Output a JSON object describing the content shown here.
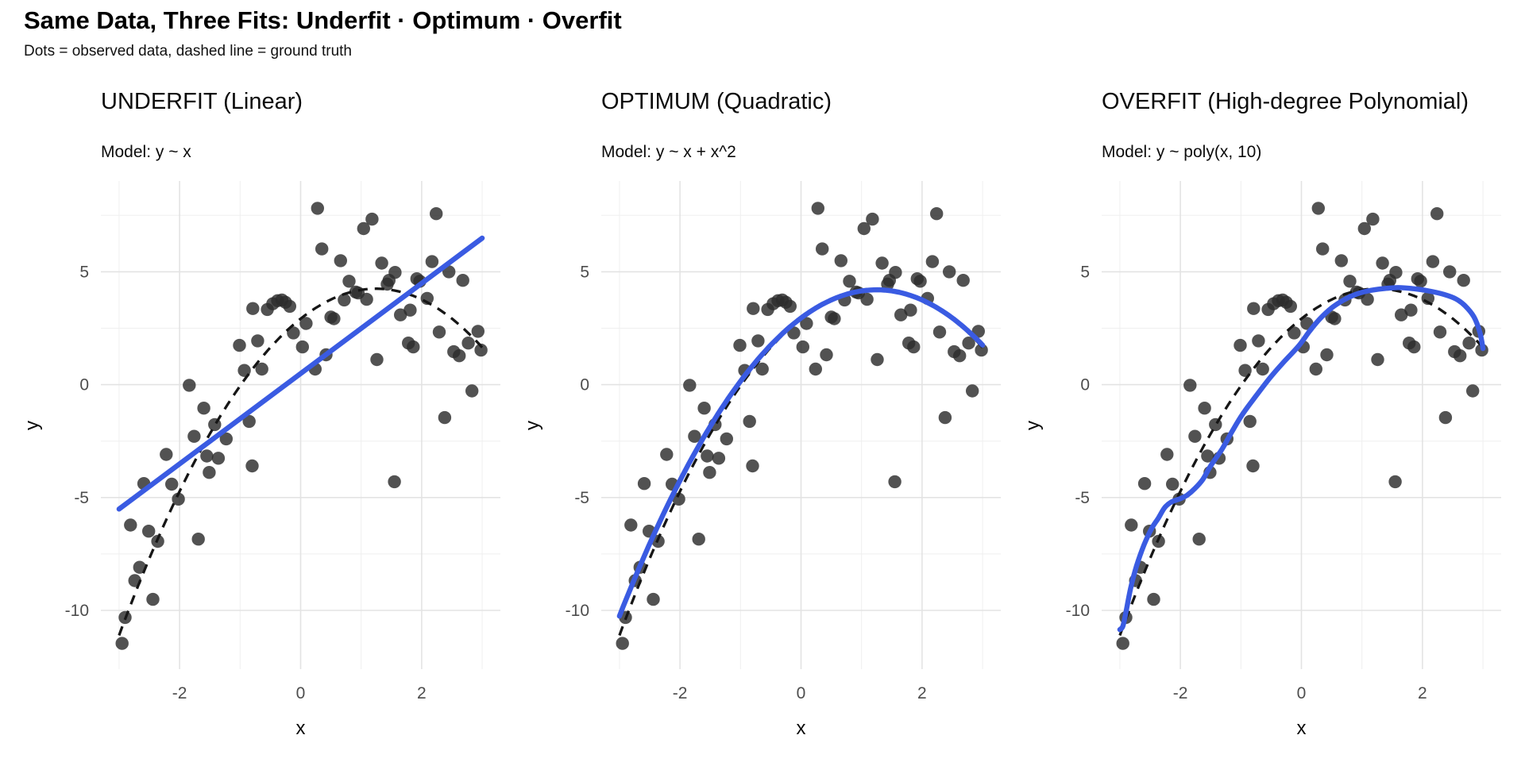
{
  "figure": {
    "title": "Same Data, Three Fits: Underfit · Optimum · Overfit",
    "subtitle": "Dots = observed data, dashed line = ground truth"
  },
  "chart_data": {
    "type": "scatter",
    "shared_points_across_panels": true,
    "xlabel": "x",
    "ylabel": "y",
    "xlim": [
      -3.3,
      3.3
    ],
    "ylim": [
      -12.6,
      9.02
    ],
    "x_ticks": [
      -2,
      0,
      2
    ],
    "y_ticks": [
      5,
      0,
      -5,
      -10
    ],
    "x_minor": [
      -3,
      -1,
      1,
      3
    ],
    "y_minor": [
      7.5,
      2.5,
      -2.5,
      -7.5
    ],
    "grid": "on",
    "colors": {
      "fit_line": "#3a5be2",
      "ground_truth": "#161616",
      "point": "#2c2c2c",
      "grid_major": "#e3e3e3",
      "grid_minor": "#efefef",
      "tick_text": "#4d4d4d",
      "axis_title_text": "#0c0c0c"
    },
    "point_style": {
      "radius": 8.2,
      "opacity": 0.82
    },
    "ground_truth": {
      "style": "dashed",
      "x_range": [
        -3,
        3
      ],
      "coef": {
        "a": 2.92,
        "b": 2.125,
        "c": -0.85
      }
    },
    "points": [
      [
        -0.79,
        3.37
      ],
      [
        -0.55,
        3.33
      ],
      [
        -0.46,
        3.58
      ],
      [
        -0.38,
        3.72
      ],
      [
        -0.31,
        3.75
      ],
      [
        -0.25,
        3.65
      ],
      [
        -0.18,
        3.47
      ],
      [
        -1.01,
        1.74
      ],
      [
        -0.71,
        1.94
      ],
      [
        -0.93,
        0.63
      ],
      [
        -0.64,
        0.69
      ],
      [
        -1.84,
        -0.03
      ],
      [
        -1.6,
        -1.04
      ],
      [
        0.28,
        7.81
      ],
      [
        1.18,
        7.33
      ],
      [
        1.04,
        6.91
      ],
      [
        2.24,
        7.57
      ],
      [
        0.35,
        6.01
      ],
      [
        0.66,
        5.49
      ],
      [
        1.34,
        5.38
      ],
      [
        2.17,
        5.45
      ],
      [
        1.56,
        4.97
      ],
      [
        2.45,
        5.0
      ],
      [
        1.46,
        4.62
      ],
      [
        1.43,
        4.45
      ],
      [
        0.8,
        4.58
      ],
      [
        2.68,
        4.62
      ],
      [
        0.91,
        4.1
      ],
      [
        0.95,
        4.06
      ],
      [
        1.09,
        3.78
      ],
      [
        0.72,
        3.75
      ],
      [
        1.92,
        4.69
      ],
      [
        1.97,
        4.58
      ],
      [
        2.09,
        3.82
      ],
      [
        0.5,
        2.99
      ],
      [
        0.55,
        2.92
      ],
      [
        0.09,
        2.71
      ],
      [
        -0.12,
        2.29
      ],
      [
        0.03,
        1.67
      ],
      [
        1.81,
        3.3
      ],
      [
        1.65,
        3.09
      ],
      [
        2.29,
        2.33
      ],
      [
        2.93,
        2.36
      ],
      [
        2.77,
        1.84
      ],
      [
        2.53,
        1.46
      ],
      [
        2.62,
        1.28
      ],
      [
        2.98,
        1.53
      ],
      [
        1.78,
        1.84
      ],
      [
        1.86,
        1.67
      ],
      [
        1.26,
        1.11
      ],
      [
        0.42,
        1.32
      ],
      [
        0.24,
        0.69
      ],
      [
        2.83,
        -0.28
      ],
      [
        2.38,
        -1.46
      ],
      [
        -1.76,
        -2.29
      ],
      [
        -1.42,
        -1.77
      ],
      [
        -1.23,
        -2.4
      ],
      [
        -0.85,
        -1.63
      ],
      [
        -2.22,
        -3.09
      ],
      [
        -1.55,
        -3.16
      ],
      [
        -1.36,
        -3.26
      ],
      [
        -1.51,
        -3.89
      ],
      [
        -0.8,
        -3.6
      ],
      [
        -2.13,
        -4.41
      ],
      [
        -2.59,
        -4.38
      ],
      [
        -2.02,
        -5.07
      ],
      [
        -2.81,
        -6.22
      ],
      [
        -2.51,
        -6.49
      ],
      [
        -2.36,
        -6.94
      ],
      [
        -1.69,
        -6.84
      ],
      [
        -2.66,
        -8.09
      ],
      [
        -2.74,
        -8.68
      ],
      [
        -2.44,
        -9.51
      ],
      [
        -2.9,
        -10.31
      ],
      [
        -2.95,
        -11.46
      ],
      [
        1.55,
        -4.3
      ]
    ],
    "panels": [
      {
        "title": "UNDERFIT (Linear)",
        "subtitle": "Model: y ~ x",
        "fit": {
          "type": "linear",
          "x_range": [
            -3,
            3
          ],
          "coef": {
            "a": 0.49,
            "b": 2.0
          }
        }
      },
      {
        "title": "OPTIMUM (Quadratic)",
        "subtitle": "Model: y ~ x + x^2",
        "fit": {
          "type": "quadratic",
          "x_range": [
            -3,
            3
          ],
          "coef": {
            "a": 2.95,
            "b": 2.0,
            "c": -0.8
          }
        }
      },
      {
        "title": "OVERFIT (High-degree Polynomial)",
        "subtitle": "Model: y ~ poly(x, 10)",
        "fit": {
          "type": "poly10",
          "waypoints": [
            [
              -3.0,
              -10.85
            ],
            [
              -2.95,
              -10.7
            ],
            [
              -2.9,
              -10.1
            ],
            [
              -2.82,
              -9.0
            ],
            [
              -2.72,
              -8.0
            ],
            [
              -2.6,
              -7.1
            ],
            [
              -2.48,
              -6.4
            ],
            [
              -2.36,
              -5.9
            ],
            [
              -2.26,
              -5.45
            ],
            [
              -2.15,
              -5.2
            ],
            [
              -2.0,
              -5.05
            ],
            [
              -1.89,
              -4.9
            ],
            [
              -1.76,
              -4.6
            ],
            [
              -1.63,
              -4.2
            ],
            [
              -1.5,
              -3.6
            ],
            [
              -1.31,
              -2.85
            ],
            [
              -1.14,
              -2.05
            ],
            [
              -0.97,
              -1.3
            ],
            [
              -0.75,
              -0.5
            ],
            [
              -0.52,
              0.3
            ],
            [
              -0.31,
              0.95
            ],
            [
              -0.05,
              1.7
            ],
            [
              0.13,
              2.35
            ],
            [
              0.3,
              2.9
            ],
            [
              0.5,
              3.4
            ],
            [
              0.7,
              3.75
            ],
            [
              0.9,
              4.0
            ],
            [
              1.1,
              4.15
            ],
            [
              1.35,
              4.25
            ],
            [
              1.6,
              4.3
            ],
            [
              1.85,
              4.25
            ],
            [
              2.1,
              4.15
            ],
            [
              2.35,
              4.0
            ],
            [
              2.55,
              3.8
            ],
            [
              2.7,
              3.5
            ],
            [
              2.85,
              3.0
            ],
            [
              2.95,
              2.3
            ],
            [
              3.0,
              1.6
            ]
          ]
        }
      }
    ]
  }
}
